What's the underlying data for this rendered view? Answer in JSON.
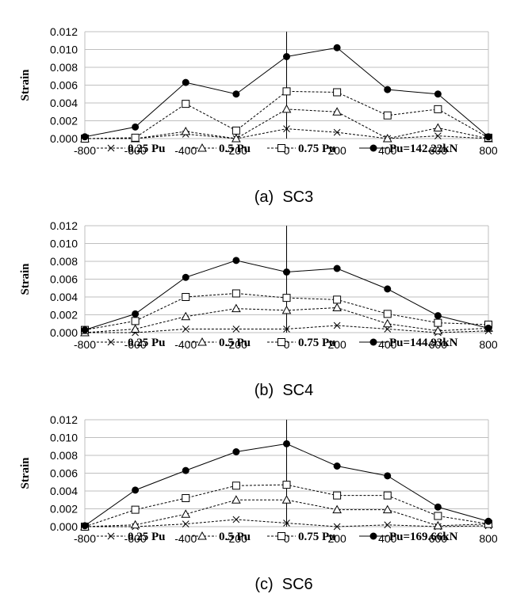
{
  "chart_data": [
    {
      "type": "line",
      "caption": "(a)  SC3",
      "ylabel": "Strain",
      "xlabel": "",
      "xlim": [
        -800,
        800
      ],
      "ylim": [
        0,
        0.012
      ],
      "x_ticks": [
        "-800",
        "-600",
        "-400",
        "-200",
        "0",
        "200",
        "400",
        "600",
        "800"
      ],
      "y_ticks": [
        "0.000",
        "0.002",
        "0.004",
        "0.006",
        "0.008",
        "0.010",
        "0.012"
      ],
      "x": [
        -800,
        -600,
        -400,
        -200,
        0,
        200,
        400,
        600,
        800
      ],
      "legend_position": "bottom",
      "series": [
        {
          "name": "0.25 Pu",
          "marker": "x",
          "line": "dashed",
          "values": [
            0.0,
            0.0,
            0.0005,
            0.0,
            0.0011,
            0.0007,
            0.0,
            0.0003,
            0.0
          ]
        },
        {
          "name": "0.5 Pu",
          "marker": "triangle",
          "line": "dashed",
          "values": [
            0.0,
            0.0,
            0.0008,
            0.0,
            0.0033,
            0.003,
            0.0,
            0.0012,
            0.0
          ]
        },
        {
          "name": "0.75 Pu",
          "marker": "square",
          "line": "dashed",
          "values": [
            0.0,
            0.0001,
            0.0039,
            0.0009,
            0.0053,
            0.0052,
            0.0026,
            0.0033,
            0.0001
          ]
        },
        {
          "name": "Pu=142.22kN",
          "marker": "circle",
          "line": "solid",
          "values": [
            0.0002,
            0.0013,
            0.0063,
            0.005,
            0.0092,
            0.0102,
            0.0055,
            0.005,
            0.0002
          ]
        }
      ]
    },
    {
      "type": "line",
      "caption": "(b)  SC4",
      "ylabel": "Strain",
      "xlabel": "",
      "xlim": [
        -800,
        800
      ],
      "ylim": [
        0,
        0.012
      ],
      "x_ticks": [
        "-800",
        "-600",
        "-400",
        "-200",
        "0",
        "200",
        "400",
        "600",
        "800"
      ],
      "y_ticks": [
        "0.000",
        "0.002",
        "0.004",
        "0.006",
        "0.008",
        "0.010",
        "0.012"
      ],
      "x": [
        -800,
        -600,
        -400,
        -200,
        0,
        200,
        400,
        600,
        800
      ],
      "legend_position": "bottom",
      "series": [
        {
          "name": "0.25 Pu",
          "marker": "x",
          "line": "dashed",
          "values": [
            0.0,
            0.0,
            0.0004,
            0.0004,
            0.0004,
            0.0008,
            0.0004,
            0.0,
            0.0002
          ]
        },
        {
          "name": "0.5 Pu",
          "marker": "triangle",
          "line": "dashed",
          "values": [
            0.0,
            0.0004,
            0.0018,
            0.0027,
            0.0025,
            0.0028,
            0.001,
            0.0002,
            0.0005
          ]
        },
        {
          "name": "0.75 Pu",
          "marker": "square",
          "line": "dashed",
          "values": [
            0.0003,
            0.0013,
            0.004,
            0.0044,
            0.0039,
            0.0037,
            0.0021,
            0.0011,
            0.0009
          ]
        },
        {
          "name": "Pu=144.93kN",
          "marker": "circle",
          "line": "solid",
          "values": [
            0.0003,
            0.0021,
            0.0062,
            0.0081,
            0.0068,
            0.0072,
            0.0049,
            0.0019,
            0.0005
          ]
        }
      ]
    },
    {
      "type": "line",
      "caption": "(c)  SC6",
      "ylabel": "Strain",
      "xlabel": "",
      "xlim": [
        -800,
        800
      ],
      "ylim": [
        0,
        0.012
      ],
      "x_ticks": [
        "-800",
        "-600",
        "-400",
        "-200",
        "0",
        "200",
        "400",
        "600",
        "800"
      ],
      "y_ticks": [
        "0.000",
        "0.002",
        "0.004",
        "0.006",
        "0.008",
        "0.010",
        "0.012"
      ],
      "x": [
        -800,
        -600,
        -400,
        -200,
        0,
        200,
        400,
        600,
        800
      ],
      "legend_position": "bottom",
      "series": [
        {
          "name": "0.25 Pu",
          "marker": "x",
          "line": "dashed",
          "values": [
            0.0,
            0.0,
            0.0003,
            0.0008,
            0.0004,
            0.0,
            0.0002,
            0.0,
            0.0001
          ]
        },
        {
          "name": "0.5 Pu",
          "marker": "triangle",
          "line": "dashed",
          "values": [
            0.0,
            0.0002,
            0.0014,
            0.003,
            0.003,
            0.0019,
            0.0019,
            0.0001,
            0.0003
          ]
        },
        {
          "name": "0.75 Pu",
          "marker": "square",
          "line": "dashed",
          "values": [
            0.0,
            0.0019,
            0.0032,
            0.0046,
            0.0047,
            0.0035,
            0.0035,
            0.0012,
            0.0003
          ]
        },
        {
          "name": "Pu=169.66kN",
          "marker": "circle",
          "line": "solid",
          "values": [
            0.0001,
            0.0041,
            0.0063,
            0.0084,
            0.0093,
            0.0068,
            0.0057,
            0.0022,
            0.0006
          ]
        }
      ]
    }
  ]
}
